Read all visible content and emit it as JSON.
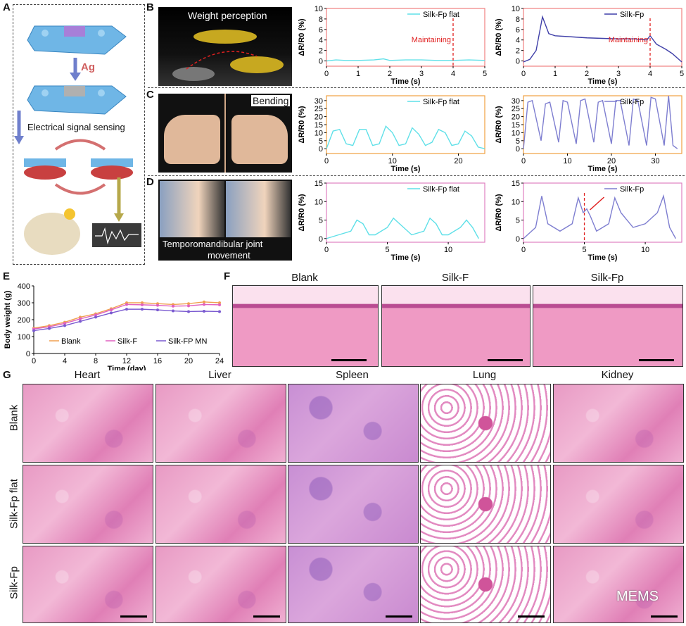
{
  "panel_labels": {
    "a": "A",
    "b": "B",
    "c": "C",
    "d": "D",
    "e": "E",
    "f": "F",
    "g": "G"
  },
  "schematic": {
    "ag": "Ag",
    "signal": "Electrical signal sensing"
  },
  "photos": {
    "weight": "Weight perception",
    "bending": "Bending",
    "tmj_line1": "Temporomandibular joint",
    "tmj_line2": "movement"
  },
  "colors": {
    "flat": "#5fe0e8",
    "fp": "#3f3fa8",
    "fp_light": "#7e7ed0",
    "annot": "#e02020",
    "blank": "#f0a050",
    "silkf": "#e060c0",
    "silkfp": "#7a5ad0"
  },
  "chart_data": [
    {
      "id": "B1",
      "type": "line",
      "xlabel": "Time (s)",
      "ylabel": "ΔR/R0 (%)",
      "xlim": [
        0,
        5
      ],
      "ylim": [
        -1,
        10
      ],
      "xticks": [
        "0",
        "1",
        "2",
        "3",
        "4",
        "5"
      ],
      "yticks": [
        "0",
        "2",
        "4",
        "6",
        "8",
        "10"
      ],
      "series": [
        {
          "name": "Silk-Fp flat",
          "x": [
            0,
            0.3,
            0.6,
            1,
            1.5,
            1.8,
            2,
            2.5,
            3,
            3.5,
            4,
            4.5,
            5
          ],
          "y": [
            0,
            0.2,
            0.1,
            0.1,
            0.2,
            0.4,
            0.1,
            0.2,
            0.2,
            0.1,
            0.1,
            0.2,
            0.1
          ]
        }
      ],
      "annotation": {
        "text": "Maintaining",
        "x": 4
      }
    },
    {
      "id": "B2",
      "type": "line",
      "xlabel": "Time (s)",
      "ylabel": "ΔR/R0 (%)",
      "xlim": [
        0,
        5
      ],
      "ylim": [
        -1,
        10
      ],
      "xticks": [
        "0",
        "1",
        "2",
        "3",
        "4",
        "5"
      ],
      "yticks": [
        "0",
        "2",
        "4",
        "6",
        "8",
        "10"
      ],
      "series": [
        {
          "name": "Silk-Fp",
          "x": [
            0,
            0.2,
            0.4,
            0.6,
            0.8,
            1,
            1.5,
            2,
            2.5,
            3,
            3.5,
            3.9,
            4,
            4.2,
            4.5,
            4.7,
            5
          ],
          "y": [
            -0.2,
            0.3,
            2,
            8.4,
            5.2,
            4.8,
            4.6,
            4.4,
            4.3,
            4.2,
            4.2,
            4,
            4.8,
            3.2,
            2.2,
            1.4,
            -0.2
          ]
        }
      ],
      "annotation": {
        "text": "Maintaining",
        "x": 4
      }
    },
    {
      "id": "C1",
      "type": "line",
      "xlabel": "Time (s)",
      "ylabel": "ΔR/R0 (%)",
      "xlim": [
        0,
        24
      ],
      "ylim": [
        -3,
        33
      ],
      "xticks": [
        "0",
        "10",
        "20"
      ],
      "yticks": [
        "0",
        "5",
        "10",
        "15",
        "20",
        "25",
        "30"
      ],
      "series": [
        {
          "name": "Silk-Fp flat",
          "x": [
            0,
            1,
            2,
            3,
            4,
            5,
            6,
            7,
            8,
            9,
            10,
            11,
            12,
            13,
            14,
            15,
            16,
            17,
            18,
            19,
            20,
            21,
            22,
            23,
            24
          ],
          "y": [
            0,
            11,
            12,
            3,
            2,
            12,
            12,
            2,
            3,
            14,
            10,
            2,
            3,
            13,
            9,
            2,
            4,
            12,
            10,
            2,
            3,
            11,
            8,
            1,
            0
          ]
        }
      ]
    },
    {
      "id": "C2",
      "type": "line",
      "xlabel": "Time (s)",
      "ylabel": "ΔR/R0 (%)",
      "xlim": [
        0,
        36
      ],
      "ylim": [
        -3,
        33
      ],
      "xticks": [
        "0",
        "10",
        "20",
        "30"
      ],
      "yticks": [
        "0",
        "5",
        "10",
        "15",
        "20",
        "25",
        "30"
      ],
      "series": [
        {
          "name": "Silk-Fp",
          "x": [
            0,
            1,
            2,
            4,
            5,
            6,
            8,
            9,
            10,
            12,
            13,
            14,
            16,
            17,
            18,
            20,
            21,
            22,
            24,
            25,
            26,
            28,
            29,
            30,
            32,
            33,
            34,
            35
          ],
          "y": [
            0,
            29,
            30,
            5,
            28,
            29,
            4,
            30,
            29,
            3,
            30,
            31,
            4,
            29,
            30,
            3,
            30,
            30,
            2,
            31,
            30,
            2,
            32,
            31,
            2,
            33,
            2,
            0
          ]
        }
      ]
    },
    {
      "id": "D1",
      "type": "line",
      "xlabel": "Time (s)",
      "ylabel": "ΔR/R0 (%)",
      "xlim": [
        0,
        13
      ],
      "ylim": [
        -1,
        15
      ],
      "xticks": [
        "0",
        "5",
        "10"
      ],
      "yticks": [
        "0",
        "5",
        "10",
        "15"
      ],
      "series": [
        {
          "name": "Silk-Fp flat",
          "x": [
            0,
            1,
            2,
            2.5,
            3,
            3.5,
            4,
            5,
            5.5,
            6,
            7,
            8,
            8.5,
            9,
            9.5,
            10,
            11,
            11.5,
            12,
            12.5
          ],
          "y": [
            0,
            1,
            2,
            5,
            4,
            1,
            1,
            3,
            5.5,
            4,
            1,
            2,
            5.5,
            4,
            1,
            1,
            3,
            5,
            3,
            0
          ]
        }
      ]
    },
    {
      "id": "D2",
      "type": "line",
      "xlabel": "Time (s)",
      "ylabel": "ΔR/R0 (%)",
      "xlim": [
        0,
        13
      ],
      "ylim": [
        -1,
        15
      ],
      "xticks": [
        "0",
        "5",
        "10"
      ],
      "yticks": [
        "0",
        "5",
        "10",
        "15"
      ],
      "series": [
        {
          "name": "Silk-Fp",
          "x": [
            0,
            1,
            1.5,
            2,
            3,
            4,
            4.5,
            4.9,
            5.2,
            5.5,
            6,
            7,
            7.5,
            8,
            9,
            10,
            11,
            11.5,
            12,
            12.5
          ],
          "y": [
            0,
            3,
            11.5,
            4,
            2,
            4,
            11,
            7,
            8,
            6,
            2,
            4,
            11,
            7,
            3,
            4,
            7,
            11.5,
            3,
            0
          ]
        }
      ],
      "annotation": {
        "text": "",
        "x": 5
      }
    },
    {
      "id": "E",
      "type": "line",
      "xlabel": "Time (day)",
      "ylabel": "Body weight (g)",
      "xlim": [
        0,
        24
      ],
      "ylim": [
        0,
        400
      ],
      "xticks": [
        "0",
        "4",
        "8",
        "12",
        "16",
        "20",
        "24"
      ],
      "yticks": [
        "0",
        "100",
        "200",
        "300",
        "400"
      ],
      "series": [
        {
          "name": "Blank",
          "x": [
            0,
            2,
            4,
            6,
            8,
            10,
            12,
            14,
            16,
            18,
            20,
            22,
            24
          ],
          "y": [
            150,
            165,
            185,
            215,
            235,
            265,
            300,
            300,
            295,
            290,
            295,
            305,
            300
          ]
        },
        {
          "name": "Silk-F",
          "x": [
            0,
            2,
            4,
            6,
            8,
            10,
            12,
            14,
            16,
            18,
            20,
            22,
            24
          ],
          "y": [
            145,
            158,
            178,
            205,
            228,
            258,
            290,
            288,
            285,
            280,
            282,
            290,
            288
          ]
        },
        {
          "name": "Silk-FP MN",
          "x": [
            0,
            2,
            4,
            6,
            8,
            10,
            12,
            14,
            16,
            18,
            20,
            22,
            24
          ],
          "y": [
            135,
            148,
            165,
            190,
            215,
            240,
            262,
            262,
            258,
            252,
            248,
            250,
            248
          ]
        }
      ]
    }
  ],
  "panel_f": {
    "titles": [
      "Blank",
      "Silk-F",
      "Silk-Fp"
    ]
  },
  "panel_g": {
    "columns": [
      "Heart",
      "Liver",
      "Spleen",
      "Lung",
      "Kidney"
    ],
    "rows": [
      "Blank",
      "Silk-Fp flat",
      "Silk-Fp"
    ]
  },
  "watermark": "MEMS"
}
